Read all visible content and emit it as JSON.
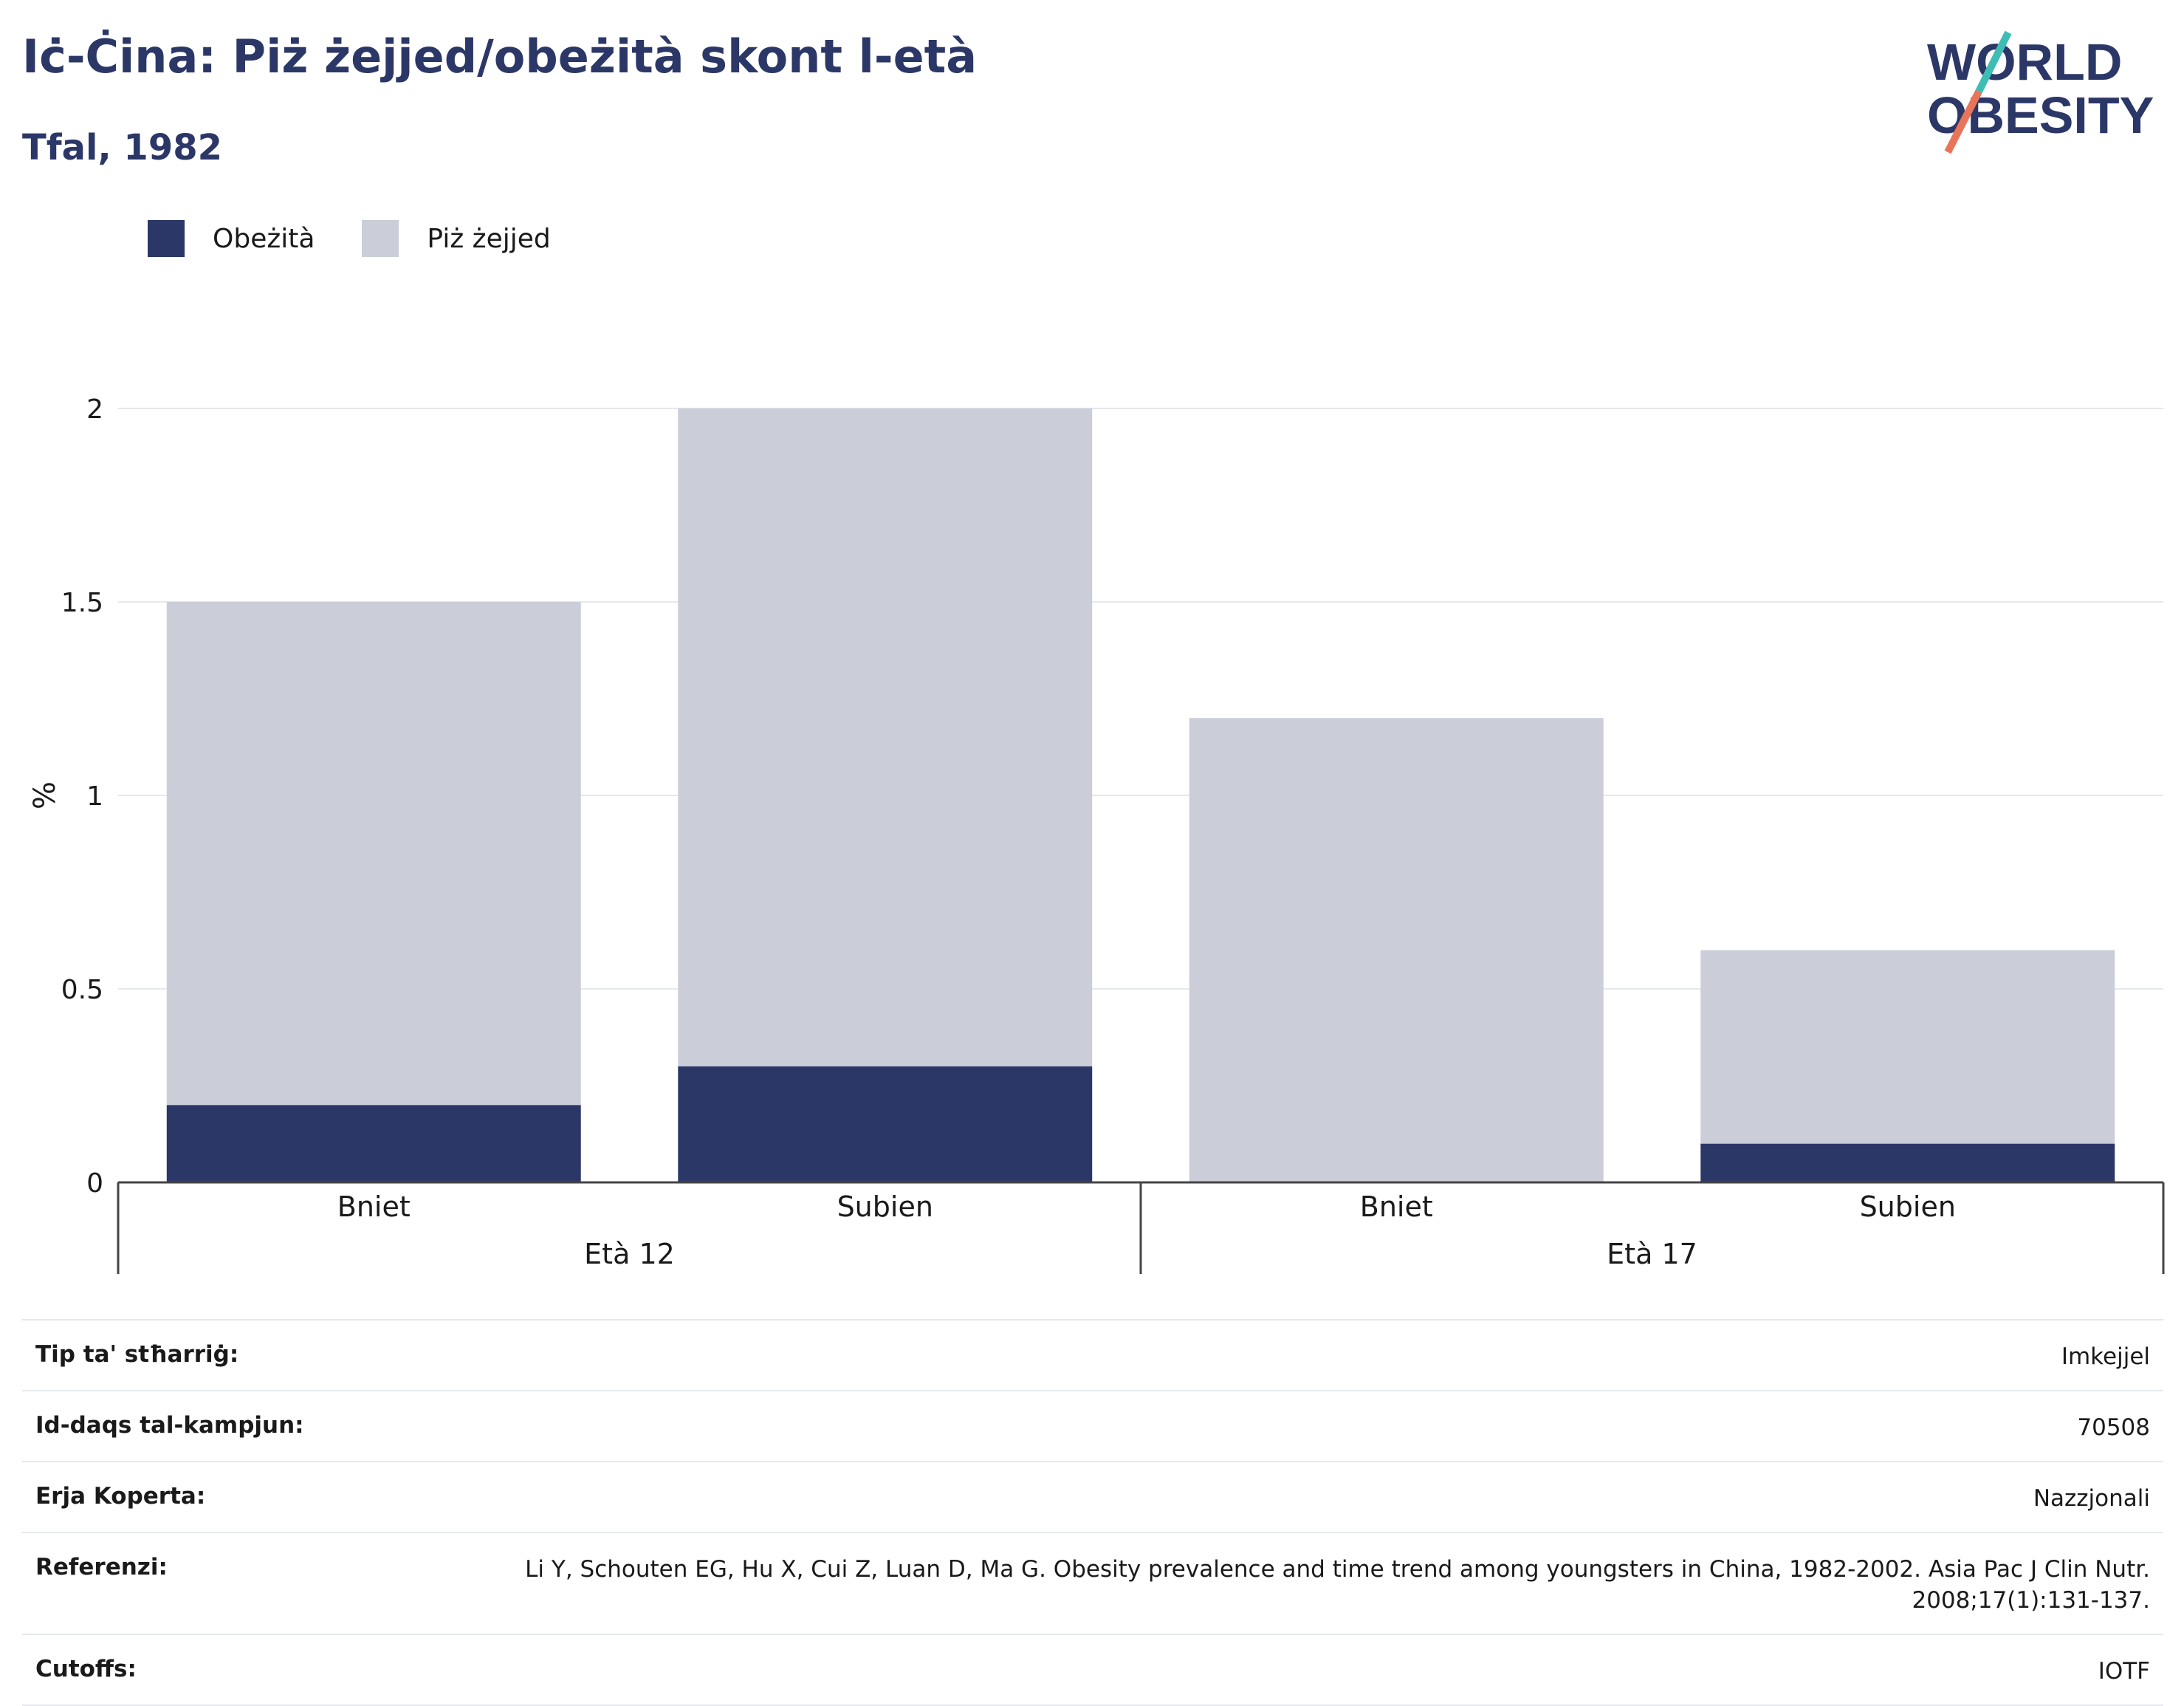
{
  "header": {
    "title": "Iċ-Ċina: Piż żejjed/obeżità skont l-età",
    "subtitle": "Tfal, 1982"
  },
  "logo": {
    "line1": "WORLD",
    "line2": "OBESITY"
  },
  "colors": {
    "obesity": "#2b3766",
    "overweight": "#cbcdd8",
    "grid": "#e6e8ef",
    "axis": "#444444"
  },
  "chart_data": {
    "type": "bar",
    "stacked": true,
    "ylabel": "%",
    "ylim": [
      0,
      2
    ],
    "yticks": [
      0,
      0.5,
      1,
      1.5,
      2
    ],
    "ytick_labels": [
      "0",
      "0.5",
      "1",
      "1.5",
      "2"
    ],
    "groups": [
      {
        "label": "Età 12",
        "categories": [
          "Bniet",
          "Subien"
        ]
      },
      {
        "label": "Età 17",
        "categories": [
          "Bniet",
          "Subien"
        ]
      }
    ],
    "categories": [
      "Bniet",
      "Subien",
      "Bniet",
      "Subien"
    ],
    "series": [
      {
        "name": "Obeżità",
        "values": [
          0.2,
          0.3,
          0,
          0.1
        ]
      },
      {
        "name": "Piż żejjed",
        "values": [
          1.3,
          1.7,
          1.2,
          0.5
        ]
      }
    ],
    "legend_position": "top-left",
    "grid": true
  },
  "meta": [
    {
      "label": "Tip ta' stħarriġ:",
      "value": "Imkejjel"
    },
    {
      "label": "Id-daqs tal-kampjun:",
      "value": "70508"
    },
    {
      "label": "Erja Koperta:",
      "value": "Nazzjonali"
    },
    {
      "label": "Referenzi:",
      "value": "Li Y, Schouten EG, Hu X, Cui Z, Luan D, Ma G. Obesity prevalence and time trend among youngsters in China, 1982-2002. Asia Pac J Clin Nutr. 2008;17(1):131-137."
    },
    {
      "label": "Cutoffs:",
      "value": "IOTF"
    }
  ]
}
